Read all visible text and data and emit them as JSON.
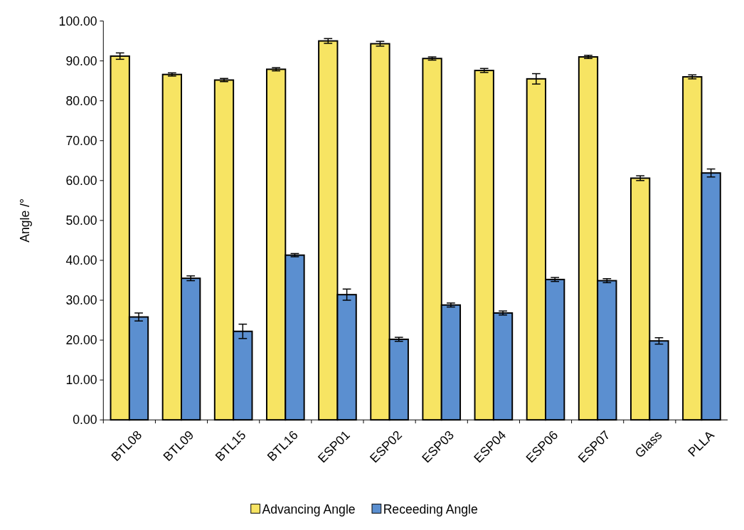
{
  "chart_data": {
    "type": "bar",
    "ylabel": "Angle /°",
    "categories": [
      "BTL08",
      "BTL09",
      "BTL15",
      "BTL16",
      "ESP01",
      "ESP02",
      "ESP03",
      "ESP04",
      "ESP06",
      "ESP07",
      "Glass",
      "PLLA"
    ],
    "series": [
      {
        "name": "Advancing Angle",
        "color": "#f7e463",
        "values": [
          91.2,
          86.6,
          85.2,
          87.9,
          95.0,
          94.3,
          90.6,
          87.6,
          85.5,
          91.0,
          60.6,
          86.0
        ],
        "errors": [
          0.8,
          0.4,
          0.4,
          0.4,
          0.6,
          0.6,
          0.4,
          0.5,
          1.3,
          0.4,
          0.6,
          0.5
        ]
      },
      {
        "name": "Receeding Angle",
        "color": "#5b8fd0",
        "values": [
          25.8,
          35.5,
          22.2,
          41.3,
          31.4,
          20.2,
          28.8,
          26.8,
          35.2,
          34.9,
          19.8,
          61.9
        ],
        "errors": [
          1.0,
          0.6,
          1.8,
          0.4,
          1.4,
          0.5,
          0.5,
          0.5,
          0.5,
          0.5,
          0.8,
          1.0
        ]
      }
    ],
    "ylim": [
      0,
      100
    ],
    "yticks": [
      {
        "value": 0,
        "label": "0.00"
      },
      {
        "value": 10,
        "label": "10.00"
      },
      {
        "value": 20,
        "label": "20.00"
      },
      {
        "value": 30,
        "label": "30.00"
      },
      {
        "value": 40,
        "label": "40.00"
      },
      {
        "value": 50,
        "label": "50.00"
      },
      {
        "value": 60,
        "label": "60.00"
      },
      {
        "value": 70,
        "label": "70.00"
      },
      {
        "value": 80,
        "label": "80.00"
      },
      {
        "value": 90,
        "label": "90.00"
      },
      {
        "value": 100,
        "label": "100.00"
      }
    ],
    "grid": false,
    "legend": "bottom"
  }
}
